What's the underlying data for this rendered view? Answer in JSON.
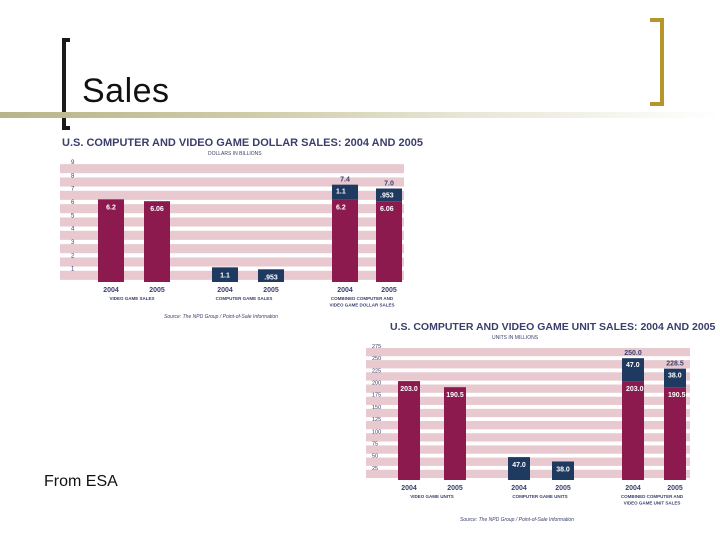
{
  "slide": {
    "title": "Sales",
    "footer": "From ESA"
  },
  "colors": {
    "bar_maroon": "#8c1a4f",
    "bar_navy": "#1f3a60",
    "band_pink": "#e7c9cf",
    "text_navy": "#3a3f6b",
    "rule_gold": "#b8952a"
  },
  "chart_data": [
    {
      "type": "bar",
      "title": "U.S. COMPUTER AND VIDEO GAME DOLLAR SALES: 2004 AND 2005",
      "subtitle": "DOLLARS IN BILLIONS",
      "ylim": [
        0,
        9
      ],
      "yticks": [
        "1",
        "2",
        "3",
        "4",
        "5",
        "6",
        "7",
        "8",
        "9"
      ],
      "categories": [
        "2004",
        "2005",
        "2004",
        "2005",
        "2004",
        "2005"
      ],
      "groups": [
        "VIDEO GAME SALES",
        "COMPUTER GAME SALES",
        "COMBINED COMPUTER AND VIDEO GAME DOLLAR SALES"
      ],
      "bars": [
        {
          "year": "2004",
          "group": "VIDEO GAME SALES",
          "value": 6.2,
          "label": "6.2"
        },
        {
          "year": "2005",
          "group": "VIDEO GAME SALES",
          "value": 6.06,
          "label": "6.06"
        },
        {
          "year": "2004",
          "group": "COMPUTER GAME SALES",
          "value": 1.1,
          "label": "1.1"
        },
        {
          "year": "2005",
          "group": "COMPUTER GAME SALES",
          "value": 0.953,
          "label": ".953"
        },
        {
          "year": "2004",
          "group": "COMBINED",
          "total": 7.4,
          "total_label": "7.4",
          "segments": [
            {
              "series": "video",
              "value": 6.2,
              "label": "6.2"
            },
            {
              "series": "computer",
              "value": 1.1,
              "label": "1.1"
            }
          ]
        },
        {
          "year": "2005",
          "group": "COMBINED",
          "total": 7.0,
          "total_label": "7.0",
          "segments": [
            {
              "series": "video",
              "value": 6.06,
              "label": "6.06"
            },
            {
              "series": "computer",
              "value": 0.953,
              "label": ".953"
            }
          ]
        }
      ],
      "source": "Source: The NPD Group / Point-of-Sale Information"
    },
    {
      "type": "bar",
      "title": "U.S. COMPUTER AND VIDEO GAME UNIT SALES: 2004 AND 2005",
      "subtitle": "UNITS IN MILLIONS",
      "ylim": [
        0,
        275
      ],
      "yticks": [
        "25",
        "50",
        "75",
        "100",
        "125",
        "150",
        "175",
        "200",
        "225",
        "250",
        "275"
      ],
      "categories": [
        "2004",
        "2005",
        "2004",
        "2005",
        "2004",
        "2005"
      ],
      "groups": [
        "VIDEO GAME UNITS",
        "COMPUTER GAME UNITS",
        "COMBINED COMPUTER AND VIDEO GAME UNIT SALES"
      ],
      "bars": [
        {
          "year": "2004",
          "group": "VIDEO GAME UNITS",
          "value": 203.0,
          "label": "203.0"
        },
        {
          "year": "2005",
          "group": "VIDEO GAME UNITS",
          "value": 190.5,
          "label": "190.5"
        },
        {
          "year": "2004",
          "group": "COMPUTER GAME UNITS",
          "value": 47.0,
          "label": "47.0"
        },
        {
          "year": "2005",
          "group": "COMPUTER GAME UNITS",
          "value": 38.0,
          "label": "38.0"
        },
        {
          "year": "2004",
          "group": "COMBINED",
          "total": 250.0,
          "total_label": "250.0",
          "segments": [
            {
              "series": "video",
              "value": 203.0,
              "label": "203.0"
            },
            {
              "series": "computer",
              "value": 47.0,
              "label": "47.0"
            }
          ]
        },
        {
          "year": "2005",
          "group": "COMBINED",
          "total": 228.5,
          "total_label": "228.5",
          "segments": [
            {
              "series": "video",
              "value": 190.5,
              "label": "190.5"
            },
            {
              "series": "computer",
              "value": 38.0,
              "label": "38.0"
            }
          ]
        }
      ],
      "source": "Source: The NPD Group / Point-of-Sale Information"
    }
  ]
}
